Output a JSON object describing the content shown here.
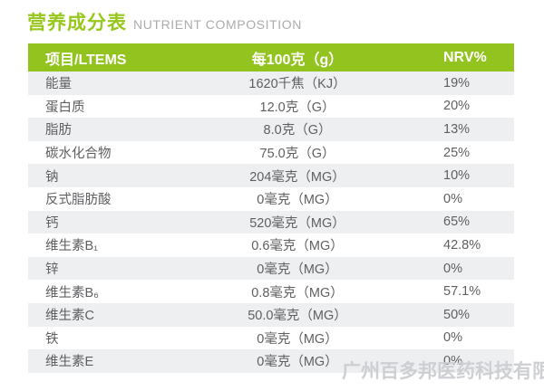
{
  "title": {
    "cn": "营养成分表",
    "en": "NUTRIENT COMPOSITION"
  },
  "table": {
    "headers": {
      "item": "项目/LTEMS",
      "per_100g": "每100克（g）",
      "nrv": "NRV%"
    },
    "rows": [
      {
        "item": "能量",
        "per_100g": "1620千焦（KJ）",
        "nrv": "19%"
      },
      {
        "item": "蛋白质",
        "per_100g": "12.0克（G）",
        "nrv": "20%"
      },
      {
        "item": "脂肪",
        "per_100g": "8.0克（G）",
        "nrv": "13%"
      },
      {
        "item": "碳水化合物",
        "per_100g": "75.0克（G）",
        "nrv": "25%"
      },
      {
        "item": "钠",
        "per_100g": "204毫克（MG）",
        "nrv": "10%"
      },
      {
        "item": "反式脂肪酸",
        "per_100g": "0毫克（MG）",
        "nrv": "0%"
      },
      {
        "item": "钙",
        "per_100g": "520毫克（MG）",
        "nrv": "65%"
      },
      {
        "item": "维生素B₁",
        "per_100g": "0.6毫克（MG）",
        "nrv": "42.8%"
      },
      {
        "item": "锌",
        "per_100g": "0毫克（MG）",
        "nrv": "0%"
      },
      {
        "item": "维生素B₆",
        "per_100g": "0.8毫克（MG）",
        "nrv": "57.1%"
      },
      {
        "item": "维生素C",
        "per_100g": "50.0毫克（MG）",
        "nrv": "50%"
      },
      {
        "item": "铁",
        "per_100g": "0毫克（MG）",
        "nrv": "0%"
      },
      {
        "item": "维生素E",
        "per_100g": "0毫克（MG）",
        "nrv": "0%"
      }
    ]
  },
  "watermark": "广州百多邦医药科技有限公司",
  "colors": {
    "accent_green": "#92C31E",
    "title_green": "#97C71C",
    "stripe_gray": "#EEEFF1",
    "body_text_gray": "#5E5F61",
    "subtitle_gray": "#ABACAC",
    "header_text": "#FFFFFF",
    "watermark_gray": "#CBCCD1"
  }
}
